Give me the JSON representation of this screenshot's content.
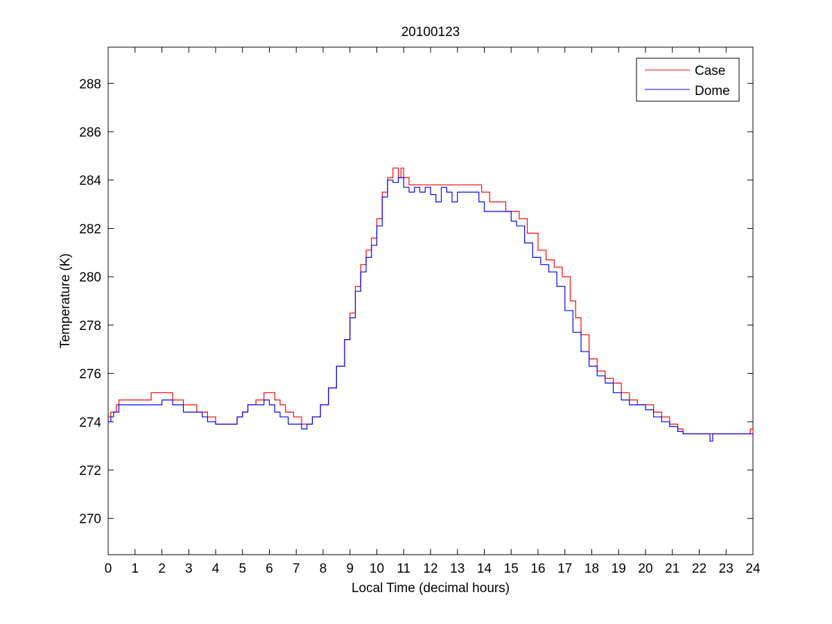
{
  "chart_data": {
    "type": "line",
    "title": "20100123",
    "xlabel": "Local Time (decimal hours)",
    "ylabel": "Temperature (K)",
    "xlim": [
      0,
      24
    ],
    "ylim": [
      268.5,
      289.5
    ],
    "xticks": [
      0,
      1,
      2,
      3,
      4,
      5,
      6,
      7,
      8,
      9,
      10,
      11,
      12,
      13,
      14,
      15,
      16,
      17,
      18,
      19,
      20,
      21,
      22,
      23,
      24
    ],
    "yticks": [
      270,
      272,
      274,
      276,
      278,
      280,
      282,
      284,
      286,
      288
    ],
    "grid": false,
    "legend_position": "top-right",
    "series": [
      {
        "name": "Case",
        "color": "#ff0000",
        "x": [
          0.0,
          0.1,
          0.3,
          0.4,
          1.0,
          1.2,
          1.6,
          2.1,
          2.4,
          2.8,
          3.3,
          3.5,
          3.7,
          4.0,
          4.6,
          4.8,
          5.0,
          5.2,
          5.5,
          5.8,
          6.2,
          6.4,
          6.6,
          6.9,
          7.2,
          7.4,
          7.6,
          7.9,
          8.2,
          8.5,
          8.8,
          9.0,
          9.2,
          9.4,
          9.6,
          9.8,
          10.0,
          10.2,
          10.4,
          10.6,
          10.7,
          10.8,
          10.9,
          11.0,
          11.2,
          11.5,
          11.8,
          12.0,
          12.5,
          13.0,
          13.5,
          13.7,
          13.9,
          14.2,
          14.5,
          14.8,
          15.0,
          15.3,
          15.6,
          16.0,
          16.3,
          16.6,
          16.9,
          17.2,
          17.4,
          17.6,
          17.9,
          18.2,
          18.5,
          18.8,
          19.1,
          19.4,
          19.7,
          20.0,
          20.3,
          20.6,
          20.9,
          21.2,
          21.4,
          21.8,
          22.5,
          23.0,
          23.5,
          23.9,
          24.0
        ],
        "y": [
          274.2,
          274.4,
          274.7,
          274.9,
          274.9,
          274.9,
          275.2,
          275.2,
          274.9,
          274.7,
          274.4,
          274.4,
          274.2,
          273.9,
          273.9,
          274.2,
          274.4,
          274.7,
          274.9,
          275.2,
          274.9,
          274.7,
          274.4,
          274.2,
          273.9,
          273.9,
          274.2,
          274.7,
          275.4,
          276.3,
          277.4,
          278.5,
          279.6,
          280.5,
          281.1,
          281.6,
          282.4,
          283.5,
          284.1,
          284.5,
          284.5,
          284.1,
          284.5,
          284.1,
          283.8,
          283.8,
          283.8,
          283.8,
          283.8,
          283.8,
          283.8,
          283.8,
          283.5,
          283.1,
          283.1,
          282.7,
          282.7,
          282.4,
          281.8,
          281.1,
          280.7,
          280.4,
          280.0,
          279.0,
          278.3,
          277.6,
          276.6,
          276.1,
          275.8,
          275.6,
          275.2,
          274.9,
          274.7,
          274.7,
          274.4,
          274.2,
          273.9,
          273.7,
          273.5,
          273.5,
          273.5,
          273.5,
          273.5,
          273.7,
          273.5
        ]
      },
      {
        "name": "Dome",
        "color": "#0000ff",
        "x": [
          0.0,
          0.1,
          0.2,
          0.4,
          0.8,
          1.2,
          1.6,
          2.0,
          2.4,
          2.8,
          3.2,
          3.5,
          3.7,
          4.0,
          4.5,
          4.8,
          5.0,
          5.2,
          5.5,
          5.8,
          6.0,
          6.2,
          6.4,
          6.7,
          7.0,
          7.2,
          7.4,
          7.6,
          7.9,
          8.2,
          8.5,
          8.8,
          9.0,
          9.2,
          9.4,
          9.6,
          9.8,
          10.0,
          10.2,
          10.4,
          10.6,
          10.8,
          11.0,
          11.2,
          11.4,
          11.6,
          11.8,
          12.0,
          12.2,
          12.4,
          12.6,
          12.8,
          13.0,
          13.3,
          13.6,
          13.8,
          14.0,
          14.3,
          14.6,
          14.9,
          15.0,
          15.2,
          15.5,
          15.8,
          16.1,
          16.4,
          16.7,
          17.0,
          17.3,
          17.6,
          17.9,
          18.2,
          18.5,
          18.8,
          19.1,
          19.4,
          19.7,
          20.0,
          20.3,
          20.6,
          20.9,
          21.2,
          21.4,
          21.8,
          22.3,
          22.4,
          22.5,
          23.0,
          23.5,
          23.9,
          24.0
        ],
        "y": [
          274.0,
          274.2,
          274.4,
          274.7,
          274.7,
          274.7,
          274.7,
          274.9,
          274.7,
          274.4,
          274.4,
          274.2,
          274.0,
          273.9,
          273.9,
          274.2,
          274.4,
          274.7,
          274.7,
          274.9,
          274.7,
          274.4,
          274.2,
          273.9,
          273.9,
          273.7,
          273.9,
          274.2,
          274.7,
          275.4,
          276.3,
          277.4,
          278.3,
          279.4,
          280.2,
          280.8,
          281.3,
          282.1,
          283.3,
          284.0,
          283.9,
          284.1,
          283.7,
          283.5,
          283.7,
          283.5,
          283.7,
          283.4,
          283.1,
          283.7,
          283.5,
          283.1,
          283.5,
          283.5,
          283.5,
          283.1,
          282.7,
          282.7,
          282.7,
          282.7,
          282.3,
          282.1,
          281.4,
          280.8,
          280.5,
          280.2,
          279.6,
          278.6,
          277.7,
          276.9,
          276.3,
          275.9,
          275.6,
          275.2,
          274.9,
          274.7,
          274.7,
          274.5,
          274.2,
          274.0,
          273.8,
          273.6,
          273.5,
          273.5,
          273.5,
          273.2,
          273.5,
          273.5,
          273.5,
          273.5,
          273.5
        ]
      }
    ]
  }
}
